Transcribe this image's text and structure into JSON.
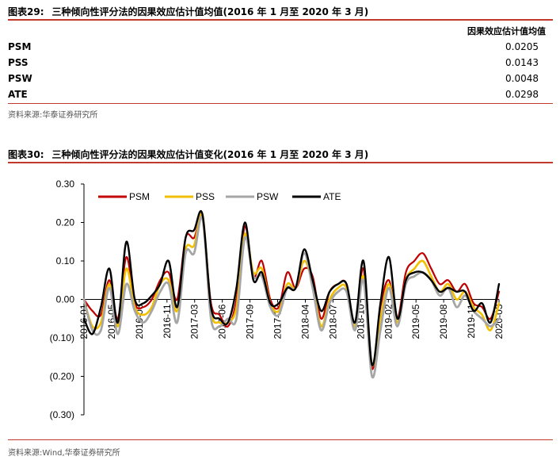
{
  "table29": {
    "label": "图表29:",
    "title": "三种倾向性评分法的因果效应估计值均值(2016 年 1 月至 2020 年 3 月)",
    "header": "因果效应估计值均值",
    "rows": [
      {
        "name": "PSM",
        "value": "0.0205"
      },
      {
        "name": "PSS",
        "value": "0.0143"
      },
      {
        "name": "PSW",
        "value": "0.0048"
      },
      {
        "name": "ATE",
        "value": "0.0298"
      }
    ],
    "source": "资料来源:华泰证券研究所"
  },
  "figure30": {
    "label": "图表30:",
    "title": "三种倾向性评分法的因果效应估计值变化(2016 年 1 月至 2020 年 3 月)",
    "source": "资料来源:Wind,华泰证券研究所"
  },
  "chart_data": {
    "type": "line",
    "ylim": [
      -0.3,
      0.3
    ],
    "yticks": [
      0.3,
      0.2,
      0.1,
      0.0,
      -0.1,
      -0.2,
      -0.3
    ],
    "ytick_labels": [
      "0.30",
      "0.20",
      "0.10",
      "0.00",
      "(0.10)",
      "(0.20)",
      "(0.30)"
    ],
    "xtick_labels": [
      "2016-01",
      "2016-05",
      "2016-08",
      "2016-11",
      "2017-03",
      "2017-06",
      "2017-09",
      "2017-12",
      "2018-04",
      "2018-07",
      "2018-10",
      "2019-02",
      "2019-05",
      "2019-08",
      "2019-11",
      "2020-03"
    ],
    "legend_position": "top",
    "grid": false,
    "series": [
      {
        "name": "PSM",
        "color": "#c00000",
        "values": [
          0.0,
          -0.03,
          -0.04,
          0.05,
          -0.05,
          0.11,
          -0.01,
          -0.02,
          0.0,
          0.05,
          0.07,
          0.0,
          0.16,
          0.16,
          0.21,
          -0.01,
          -0.04,
          -0.07,
          0.0,
          0.19,
          0.06,
          0.1,
          0.0,
          -0.02,
          0.07,
          0.03,
          0.08,
          0.06,
          -0.05,
          0.02,
          0.04,
          0.04,
          -0.07,
          0.08,
          -0.18,
          -0.02,
          0.05,
          -0.05,
          0.07,
          0.1,
          0.12,
          0.08,
          0.04,
          0.05,
          0.02,
          0.04,
          -0.01,
          -0.02,
          -0.05,
          0.02
        ]
      },
      {
        "name": "PSS",
        "color": "#f2c000",
        "values": [
          0.0,
          -0.07,
          -0.06,
          0.04,
          -0.07,
          0.08,
          -0.02,
          -0.04,
          -0.02,
          0.04,
          0.05,
          -0.03,
          0.13,
          0.14,
          0.22,
          -0.03,
          -0.06,
          -0.06,
          -0.02,
          0.17,
          0.07,
          0.08,
          -0.01,
          -0.03,
          0.04,
          0.03,
          0.1,
          0.04,
          -0.07,
          0.0,
          0.03,
          0.03,
          -0.07,
          0.06,
          -0.17,
          -0.05,
          0.04,
          -0.06,
          0.05,
          0.08,
          0.1,
          0.06,
          0.02,
          0.04,
          0.0,
          0.02,
          -0.02,
          -0.04,
          -0.08,
          -0.01
        ]
      },
      {
        "name": "PSW",
        "color": "#a6a6a6",
        "values": [
          0.0,
          -0.08,
          -0.08,
          0.03,
          -0.09,
          0.04,
          -0.03,
          -0.06,
          -0.03,
          0.02,
          0.04,
          -0.06,
          0.12,
          0.12,
          0.21,
          -0.05,
          -0.07,
          -0.05,
          -0.05,
          0.16,
          0.06,
          0.06,
          -0.02,
          -0.04,
          0.03,
          0.03,
          0.12,
          0.03,
          -0.08,
          -0.01,
          0.02,
          0.02,
          -0.08,
          0.05,
          -0.2,
          -0.08,
          0.03,
          -0.07,
          0.04,
          0.06,
          0.07,
          0.05,
          0.01,
          0.03,
          -0.02,
          0.01,
          -0.03,
          -0.05,
          -0.07,
          -0.05
        ]
      },
      {
        "name": "ATE",
        "color": "#000000",
        "values": [
          -0.05,
          -0.09,
          -0.02,
          0.08,
          -0.06,
          0.15,
          0.0,
          -0.01,
          0.01,
          0.04,
          0.1,
          -0.02,
          0.16,
          0.18,
          0.22,
          -0.02,
          -0.05,
          -0.06,
          0.03,
          0.2,
          0.05,
          0.07,
          -0.01,
          -0.01,
          0.03,
          0.03,
          0.13,
          0.05,
          -0.03,
          0.02,
          0.04,
          0.04,
          -0.06,
          0.1,
          -0.17,
          -0.01,
          0.11,
          -0.05,
          0.05,
          0.07,
          0.07,
          0.05,
          0.02,
          0.03,
          0.02,
          0.02,
          -0.03,
          -0.01,
          -0.06,
          0.04
        ]
      }
    ]
  }
}
